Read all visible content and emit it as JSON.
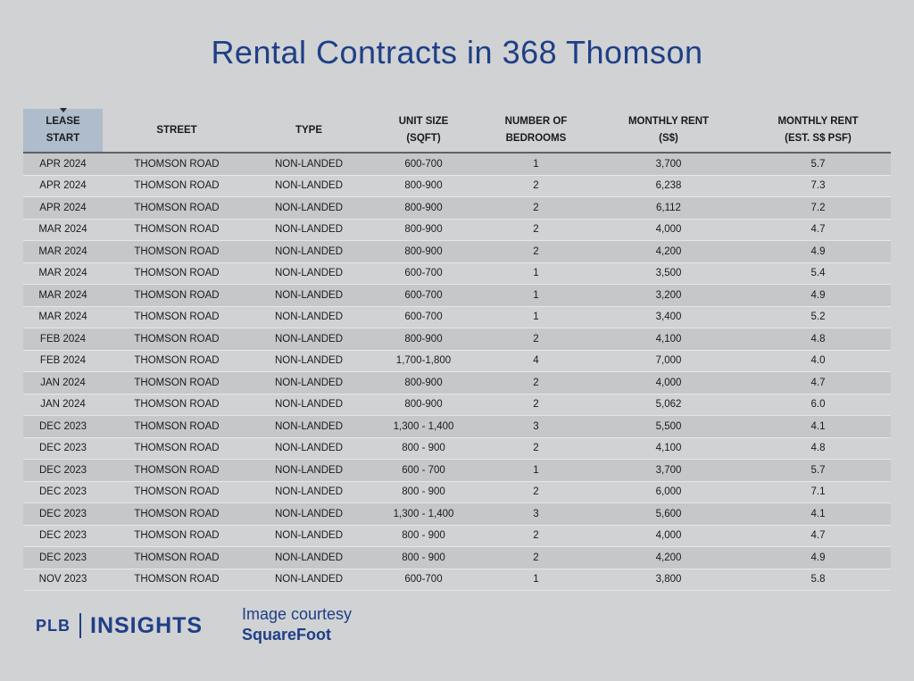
{
  "title": "Rental Contracts in 368 Thomson",
  "table": {
    "headers": [
      {
        "line1": "LEASE",
        "line2": "START"
      },
      {
        "line1": "STREET",
        "line2": ""
      },
      {
        "line1": "TYPE",
        "line2": ""
      },
      {
        "line1": "UNIT SIZE",
        "line2": "(SQFT)"
      },
      {
        "line1": "NUMBER OF",
        "line2": "BEDROOMS"
      },
      {
        "line1": "MONTHLY RENT",
        "line2": "(S$)"
      },
      {
        "line1": "MONTHLY RENT",
        "line2": "(EST. S$ PSF)"
      }
    ],
    "rows": [
      [
        "APR 2024",
        "THOMSON ROAD",
        "NON-LANDED",
        "600-700",
        "1",
        "3,700",
        "5.7"
      ],
      [
        "APR 2024",
        "THOMSON ROAD",
        "NON-LANDED",
        "800-900",
        "2",
        "6,238",
        "7.3"
      ],
      [
        "APR 2024",
        "THOMSON ROAD",
        "NON-LANDED",
        "800-900",
        "2",
        "6,112",
        "7.2"
      ],
      [
        "MAR 2024",
        "THOMSON ROAD",
        "NON-LANDED",
        "800-900",
        "2",
        "4,000",
        "4.7"
      ],
      [
        "MAR 2024",
        "THOMSON ROAD",
        "NON-LANDED",
        "800-900",
        "2",
        "4,200",
        "4.9"
      ],
      [
        "MAR 2024",
        "THOMSON ROAD",
        "NON-LANDED",
        "600-700",
        "1",
        "3,500",
        "5.4"
      ],
      [
        "MAR 2024",
        "THOMSON ROAD",
        "NON-LANDED",
        "600-700",
        "1",
        "3,200",
        "4.9"
      ],
      [
        "MAR 2024",
        "THOMSON ROAD",
        "NON-LANDED",
        "600-700",
        "1",
        "3,400",
        "5.2"
      ],
      [
        "FEB 2024",
        "THOMSON ROAD",
        "NON-LANDED",
        "800-900",
        "2",
        "4,100",
        "4.8"
      ],
      [
        "FEB 2024",
        "THOMSON ROAD",
        "NON-LANDED",
        "1,700-1,800",
        "4",
        "7,000",
        "4.0"
      ],
      [
        "JAN 2024",
        "THOMSON ROAD",
        "NON-LANDED",
        "800-900",
        "2",
        "4,000",
        "4.7"
      ],
      [
        "JAN 2024",
        "THOMSON ROAD",
        "NON-LANDED",
        "800-900",
        "2",
        "5,062",
        "6.0"
      ],
      [
        "DEC 2023",
        "THOMSON ROAD",
        "NON-LANDED",
        "1,300 - 1,400",
        "3",
        "5,500",
        "4.1"
      ],
      [
        "DEC 2023",
        "THOMSON ROAD",
        "NON-LANDED",
        "800 - 900",
        "2",
        "4,100",
        "4.8"
      ],
      [
        "DEC 2023",
        "THOMSON ROAD",
        "NON-LANDED",
        "600 - 700",
        "1",
        "3,700",
        "5.7"
      ],
      [
        "DEC 2023",
        "THOMSON ROAD",
        "NON-LANDED",
        "800 - 900",
        "2",
        "6,000",
        "7.1"
      ],
      [
        "DEC 2023",
        "THOMSON ROAD",
        "NON-LANDED",
        "1,300 - 1,400",
        "3",
        "5,600",
        "4.1"
      ],
      [
        "DEC 2023",
        "THOMSON ROAD",
        "NON-LANDED",
        "800 - 900",
        "2",
        "4,000",
        "4.7"
      ],
      [
        "DEC 2023",
        "THOMSON ROAD",
        "NON-LANDED",
        "800 - 900",
        "2",
        "4,200",
        "4.9"
      ],
      [
        "NOV 2023",
        "THOMSON ROAD",
        "NON-LANDED",
        "600-700",
        "1",
        "3,800",
        "5.8"
      ]
    ]
  },
  "footer": {
    "logo_left": "PLB",
    "logo_right": "INSIGHTS",
    "courtesy_line1": "Image courtesy",
    "courtesy_source": "SquareFoot"
  },
  "colors": {
    "brand": "#1f3f86",
    "background": "#d0d2d4",
    "row_alt": "#c5c7c9",
    "sorted_header": "#aebccb"
  }
}
